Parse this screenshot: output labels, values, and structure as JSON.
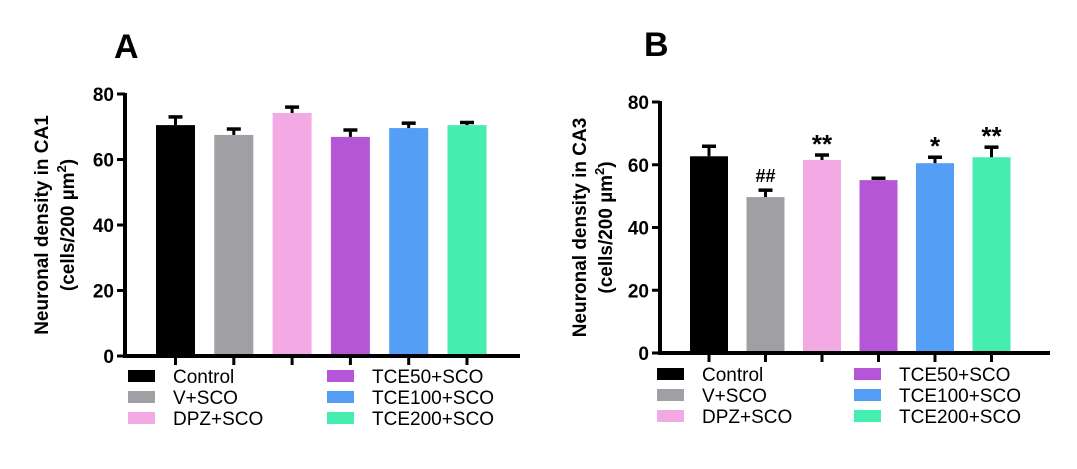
{
  "chart_data": [
    {
      "type": "bar",
      "panel": "A",
      "title": "A",
      "xlabel": "",
      "ylabel": "Neuronal density in CA1",
      "ylabel_units_prefix": "(cells/200 µm",
      "ylabel_units_sup": "2",
      "ylabel_units_suffix": ")",
      "ylim": [
        0,
        80
      ],
      "yticks": [
        0,
        20,
        40,
        60,
        80
      ],
      "ytick_labels": [
        "0",
        "20",
        "40",
        "60",
        "80"
      ],
      "grid": false,
      "categories": [
        "Control",
        "V+SCO",
        "DPZ+SCO",
        "TCE50+SCO",
        "TCE100+SCO",
        "TCE200+SCO"
      ],
      "values": [
        70.5,
        67.5,
        74.2,
        66.9,
        69.6,
        70.5
      ],
      "error": [
        2.5,
        1.8,
        1.8,
        2.1,
        1.5,
        0.8
      ],
      "annotations": [
        "",
        "",
        "",
        "",
        "",
        ""
      ],
      "legend_position": "bottom"
    },
    {
      "type": "bar",
      "panel": "B",
      "title": "B",
      "xlabel": "",
      "ylabel": "Neuronal density in CA3",
      "ylabel_units_prefix": "(cells/200 µm",
      "ylabel_units_sup": "2",
      "ylabel_units_suffix": ")",
      "ylim": [
        0,
        80
      ],
      "yticks": [
        0,
        20,
        40,
        60,
        80
      ],
      "ytick_labels": [
        "0",
        "20",
        "40",
        "60",
        "80"
      ],
      "grid": false,
      "categories": [
        "Control",
        "V+SCO",
        "DPZ+SCO",
        "TCE50+SCO",
        "TCE100+SCO",
        "TCE200+SCO"
      ],
      "values": [
        62.7,
        49.7,
        61.5,
        55.1,
        60.5,
        62.4
      ],
      "error": [
        3.2,
        2.2,
        1.6,
        0.6,
        1.9,
        3.2
      ],
      "annotations": [
        "",
        "##",
        "**",
        "",
        "*",
        "**"
      ],
      "legend_position": "bottom"
    }
  ],
  "legend": {
    "entries": [
      {
        "label": "Control",
        "color": "#000000"
      },
      {
        "label": "V+SCO",
        "color": "#a0a0a4"
      },
      {
        "label": "DPZ+SCO",
        "color": "#f3a9e4"
      },
      {
        "label": "TCE50+SCO",
        "color": "#b456d6"
      },
      {
        "label": "TCE100+SCO",
        "color": "#559ef5"
      },
      {
        "label": "TCE200+SCO",
        "color": "#45eeaf"
      }
    ]
  }
}
